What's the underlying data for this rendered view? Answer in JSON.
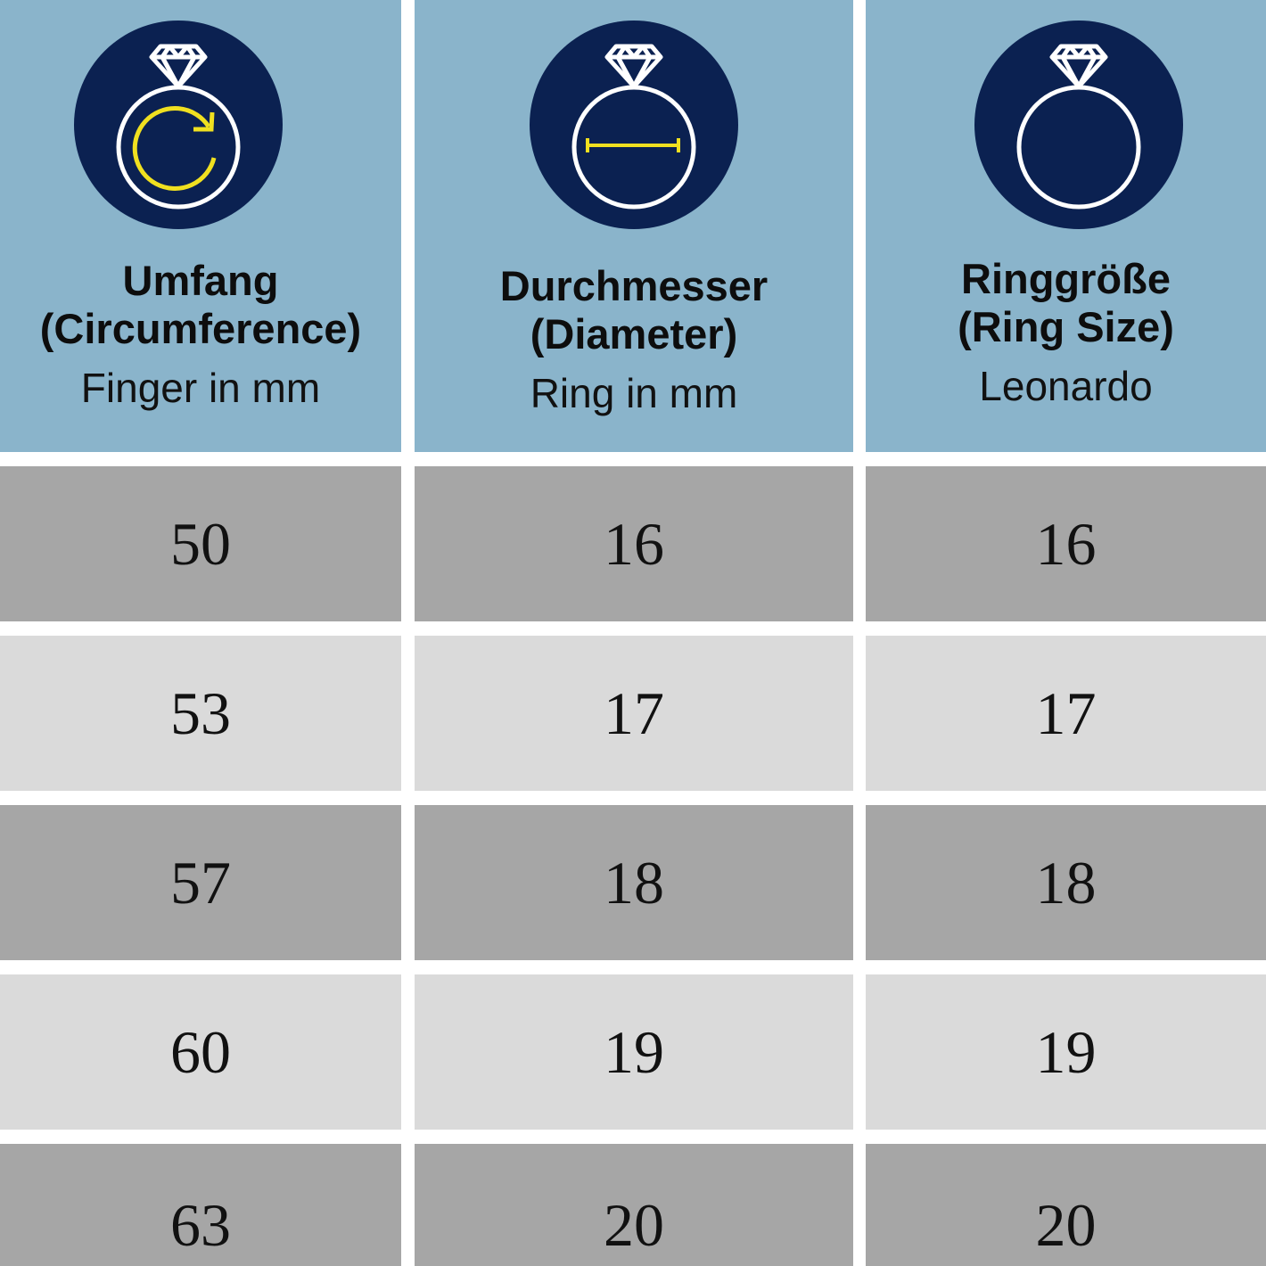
{
  "colors": {
    "header_bg": "#8ab4cb",
    "icon_bg": "#0b2151",
    "accent": "#f0e020",
    "row_dark": "#a6a6a6",
    "row_light": "#dadada"
  },
  "columns": [
    {
      "title": "Umfang",
      "subtitle": "(Circumference)",
      "unit": "Finger in mm",
      "icon": "ring-circumference-icon"
    },
    {
      "title": "Durchmesser",
      "subtitle": "(Diameter)",
      "unit": "Ring in mm",
      "icon": "ring-diameter-icon"
    },
    {
      "title": "Ringgröße",
      "subtitle": "(Ring Size)",
      "unit": "Leonardo",
      "icon": "ring-icon"
    }
  ],
  "rows": [
    [
      "50",
      "16",
      "16"
    ],
    [
      "53",
      "17",
      "17"
    ],
    [
      "57",
      "18",
      "18"
    ],
    [
      "60",
      "19",
      "19"
    ],
    [
      "63",
      "20",
      "20"
    ]
  ]
}
